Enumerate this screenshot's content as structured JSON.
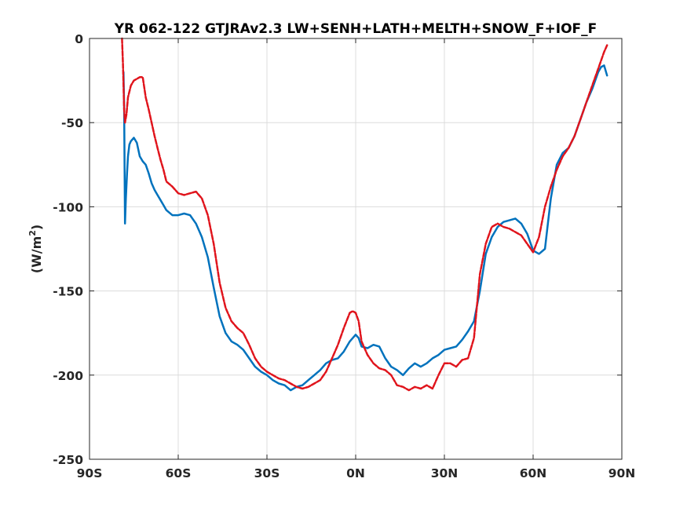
{
  "chart_data": {
    "type": "line",
    "title": "YR 062-122 GTJRAv2.3 LW+SENH+LATH+MELTH+SNOW_F+IOF_F",
    "ylabel": "(W/m",
    "ylabel_sup": "2",
    "ylabel_end": ")",
    "xlabel": "",
    "xlim": [
      -90,
      90
    ],
    "ylim": [
      -250,
      0
    ],
    "grid": true,
    "xticks": [
      -90,
      -60,
      -30,
      0,
      30,
      60,
      90
    ],
    "xtick_labels": [
      "90S",
      "60S",
      "30S",
      "0N",
      "30N",
      "60N",
      "90N"
    ],
    "yticks": [
      -250,
      -200,
      -150,
      -100,
      -50,
      0
    ],
    "ytick_labels": [
      "-250",
      "-200",
      "-150",
      "-100",
      "-50",
      "0"
    ],
    "series": [
      {
        "color": "#0072BD",
        "style": "solid",
        "x": [
          -78.5,
          -78.3,
          -78.0,
          -77.7,
          -77.3,
          -77.0,
          -76.5,
          -76.0,
          -75.0,
          -74.0,
          -73.0,
          -72.0,
          -71.0,
          -70.0,
          -69.0,
          -68.0,
          -67.0,
          -66.0,
          -65.0,
          -64.0,
          -62.0,
          -60.0,
          -58.0,
          -56.0,
          -54.0,
          -52.0,
          -50.0,
          -48.0,
          -46.0,
          -44.0,
          -42.0,
          -40.0,
          -38.0,
          -36.0,
          -34.0,
          -32.0,
          -30.0,
          -28.0,
          -26.0,
          -24.0,
          -22.0,
          -20.0,
          -18.0,
          -16.0,
          -14.0,
          -12.0,
          -10.0,
          -8.0,
          -6.0,
          -4.0,
          -2.0,
          0.0,
          1.0,
          2.0,
          4.0,
          6.0,
          8.0,
          10.0,
          12.0,
          14.0,
          16.0,
          18.0,
          20.0,
          22.0,
          24.0,
          26.0,
          28.0,
          30.0,
          32.0,
          34.0,
          36.0,
          38.0,
          40.0,
          42.0,
          44.0,
          46.0,
          48.0,
          50.0,
          52.0,
          54.0,
          56.0,
          58.0,
          60.0,
          62.0,
          64.0,
          65.0,
          66.0,
          68.0,
          70.0,
          72.0,
          74.0,
          76.0,
          78.0,
          80.0,
          82.0,
          83.0,
          84.0,
          85.0
        ],
        "y": [
          -20,
          -40,
          -110,
          -95,
          -80,
          -70,
          -63,
          -61,
          -59,
          -62,
          -70,
          -73,
          -75,
          -80,
          -86,
          -90,
          -93,
          -96,
          -99,
          -102,
          -105,
          -105,
          -104,
          -105,
          -110,
          -118,
          -130,
          -148,
          -165,
          -175,
          -180,
          -182,
          -185,
          -190,
          -195,
          -198,
          -200,
          -203,
          -205,
          -206,
          -209,
          -207,
          -206,
          -203,
          -200,
          -197,
          -193,
          -191,
          -190,
          -186,
          -180,
          -176,
          -178,
          -183,
          -184,
          -182,
          -183,
          -190,
          -195,
          -197,
          -200,
          -196,
          -193,
          -195,
          -193,
          -190,
          -188,
          -185,
          -184,
          -183,
          -179,
          -174,
          -168,
          -150,
          -128,
          -118,
          -112,
          -109,
          -108,
          -107,
          -110,
          -116,
          -126,
          -128,
          -125,
          -110,
          -95,
          -75,
          -68,
          -65,
          -58,
          -48,
          -38,
          -30,
          -20,
          -17,
          -16,
          -22
        ]
      },
      {
        "color": "#E0141C",
        "style": "dashed",
        "x": [
          -79.0,
          -78.7,
          -78.3,
          -78.0,
          -77.5,
          -77.0,
          -76.0,
          -75.0,
          -74.0,
          -73.0,
          -72.0,
          -71.0,
          -70.0,
          -69.0,
          -68.0,
          -67.0,
          -66.0,
          -65.0,
          -64.0,
          -62.0,
          -60.0,
          -58.0,
          -56.0,
          -54.0,
          -52.0,
          -50.0,
          -48.0,
          -46.0,
          -44.0,
          -42.0,
          -40.0,
          -38.0,
          -36.0,
          -34.0,
          -32.0,
          -30.0,
          -28.0,
          -26.0,
          -24.0,
          -22.0,
          -20.0,
          -18.0,
          -16.0,
          -14.0,
          -12.0,
          -10.0,
          -8.0,
          -6.0,
          -4.0,
          -2.0,
          -1.0,
          0.0,
          1.0,
          2.0,
          4.0,
          6.0,
          8.0,
          10.0,
          12.0,
          14.0,
          16.0,
          18.0,
          20.0,
          22.0,
          24.0,
          26.0,
          28.0,
          30.0,
          32.0,
          34.0,
          36.0,
          38.0,
          40.0,
          42.0,
          44.0,
          46.0,
          48.0,
          50.0,
          52.0,
          54.0,
          56.0,
          58.0,
          60.0,
          62.0,
          64.0,
          66.0,
          68.0,
          70.0,
          72.0,
          74.0,
          76.0,
          78.0,
          80.0,
          82.0,
          84.0,
          85.0
        ],
        "y": [
          0,
          -15,
          -42,
          -50,
          -45,
          -35,
          -28,
          -25,
          -24,
          -23,
          -23,
          -35,
          -42,
          -50,
          -58,
          -65,
          -72,
          -78,
          -85,
          -88,
          -92,
          -93,
          -92,
          -91,
          -95,
          -105,
          -122,
          -145,
          -160,
          -168,
          -172,
          -175,
          -182,
          -190,
          -195,
          -198,
          -200,
          -202,
          -203,
          -205,
          -207,
          -208,
          -207,
          -205,
          -203,
          -198,
          -190,
          -182,
          -172,
          -163,
          -162,
          -163,
          -168,
          -180,
          -188,
          -193,
          -196,
          -197,
          -200,
          -206,
          -207,
          -209,
          -207,
          -208,
          -206,
          -208,
          -200,
          -193,
          -193,
          -195,
          -191,
          -190,
          -178,
          -140,
          -122,
          -112,
          -110,
          -112,
          -113,
          -115,
          -117,
          -122,
          -127,
          -118,
          -100,
          -88,
          -78,
          -70,
          -65,
          -58,
          -48,
          -38,
          -28,
          -18,
          -8,
          -4
        ]
      }
    ]
  }
}
